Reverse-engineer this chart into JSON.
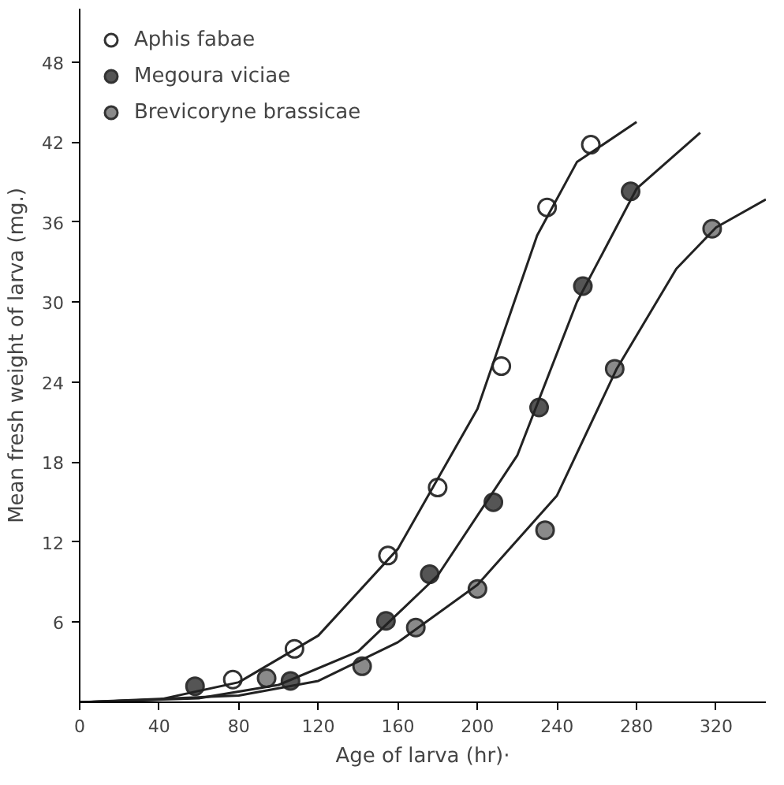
{
  "chart_data": {
    "type": "scatter",
    "xlabel": "Age of larva (hr)·",
    "ylabel": "Mean fresh weight of larva (mg.)",
    "xlim": [
      0,
      345
    ],
    "ylim": [
      0,
      52
    ],
    "xticks": [
      0,
      40,
      80,
      120,
      160,
      200,
      240,
      280,
      320
    ],
    "yticks": [
      6,
      12,
      18,
      24,
      30,
      36,
      42,
      48
    ],
    "grid": false,
    "legend": "top left",
    "series": [
      {
        "name": "Aphis fabae",
        "color": "#ffffff",
        "marker": "circle",
        "x": [
          77,
          108,
          155,
          180,
          212,
          235,
          257
        ],
        "values": [
          1.7,
          4.0,
          11,
          16.1,
          25.2,
          37.1,
          41.8
        ]
      },
      {
        "name": "Megoura viciae",
        "color": "#555555",
        "marker": "circle",
        "x": [
          58,
          106,
          154,
          176,
          208,
          231,
          253,
          277
        ],
        "values": [
          1.2,
          1.6,
          6.1,
          9.6,
          15.0,
          22.1,
          31.2,
          38.3
        ]
      },
      {
        "name": "Brevicoryne brassicae",
        "color": "#8a8a8a",
        "marker": "circle",
        "x": [
          94,
          142,
          169,
          200,
          234,
          269,
          318
        ],
        "values": [
          1.8,
          2.7,
          5.6,
          8.5,
          12.9,
          25.0,
          35.5
        ]
      },
      {
        "type": "line",
        "marker": "none",
        "color": "#222222",
        "x": [
          0,
          40,
          80,
          120,
          160,
          200,
          230,
          250,
          280
        ],
        "values": [
          0,
          0.2,
          1.5,
          5,
          11.5,
          22,
          35,
          40.5,
          43.5
        ]
      },
      {
        "type": "line",
        "marker": "none",
        "color": "#222222",
        "x": [
          0,
          60,
          100,
          140,
          180,
          220,
          250,
          280,
          312
        ],
        "values": [
          0,
          0.3,
          1.3,
          3.8,
          9.5,
          18.5,
          30,
          38.5,
          42.7
        ]
      },
      {
        "type": "line",
        "marker": "none",
        "color": "#222222",
        "x": [
          0,
          80,
          120,
          160,
          200,
          240,
          270,
          300,
          320,
          345
        ],
        "values": [
          0,
          0.5,
          1.6,
          4.5,
          8.8,
          15.5,
          25,
          32.5,
          35.6,
          37.7
        ]
      }
    ]
  }
}
